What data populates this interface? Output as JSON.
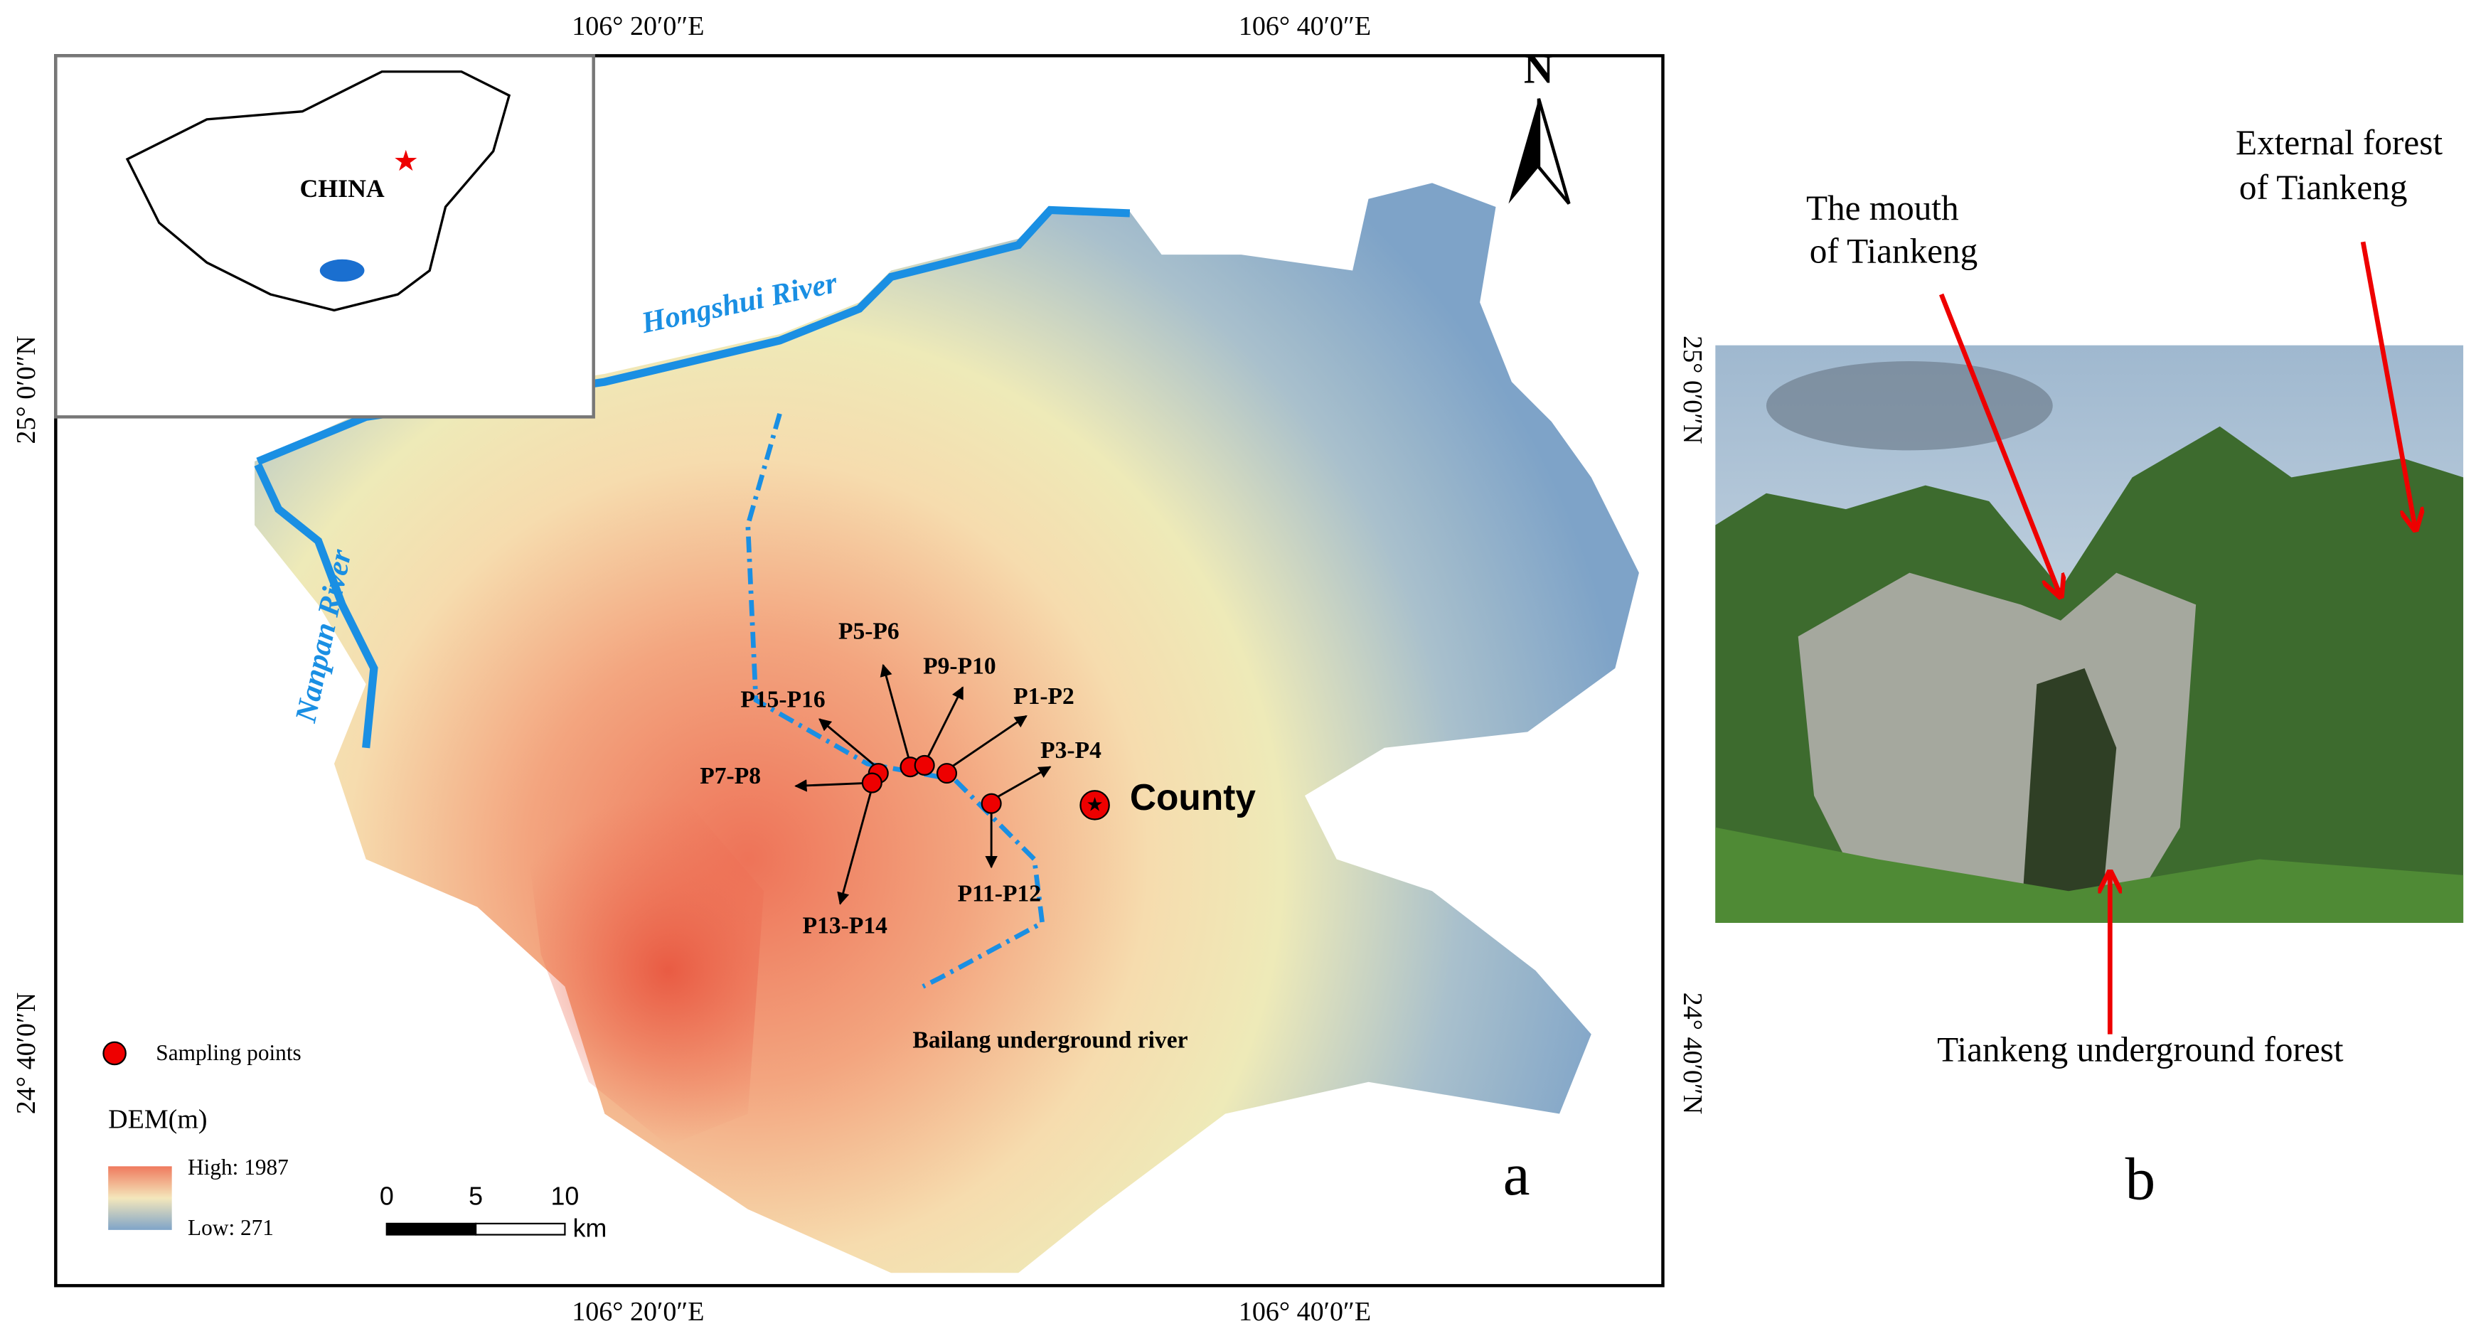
{
  "map": {
    "graticule": {
      "lon": [
        "106° 20′0″E",
        "106° 40′0″E"
      ],
      "lat": [
        "25° 0′0″N",
        "24° 40′0″N"
      ]
    },
    "inset_label": "CHINA",
    "north": "N",
    "rivers": [
      "Hongshui River",
      "Nanpan River",
      "Bailang underground river"
    ],
    "points": [
      "P5-P6",
      "P9-P10",
      "P15-P16",
      "P1-P2",
      "P3-P4",
      "P7-P8",
      "P11-P12",
      "P13-P14"
    ],
    "county": "County",
    "legend": {
      "points": "Sampling points",
      "dem": "DEM(m)",
      "high": "High: 1987",
      "low": "Low: 271"
    },
    "scale": {
      "ticks": [
        "0",
        "5",
        "10"
      ],
      "unit": "km"
    },
    "panel": "a"
  },
  "photo": {
    "mouth": [
      "The mouth",
      "of Tiankeng"
    ],
    "external": [
      "External forest",
      "of Tiankeng"
    ],
    "underground": "Tiankeng underground forest",
    "panel": "b"
  }
}
